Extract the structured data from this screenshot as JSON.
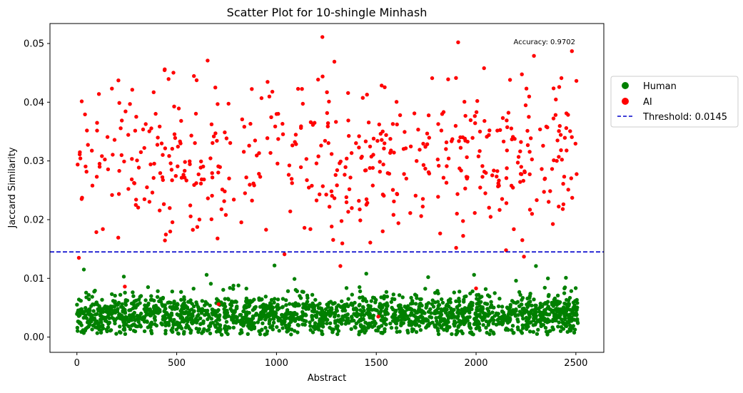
{
  "chart_data": {
    "type": "scatter",
    "title": "Scatter Plot for 10-shingle Minhash",
    "xlabel": "Abstract",
    "ylabel": "Jaccard Similarity",
    "xlim": [
      -135,
      2640
    ],
    "ylim": [
      -0.0026,
      0.0534
    ],
    "x_ticks": [
      0,
      500,
      1000,
      1500,
      2000,
      2500
    ],
    "x_tick_labels": [
      "0",
      "500",
      "1000",
      "1500",
      "2000",
      "2500"
    ],
    "y_ticks": [
      0.0,
      0.01,
      0.02,
      0.03,
      0.04,
      0.05
    ],
    "y_tick_labels": [
      "0.00",
      "0.01",
      "0.02",
      "0.03",
      "0.04",
      "0.05"
    ],
    "grid": false,
    "legend_placement": "outside-right",
    "annotation": "Accuracy: 0.9702",
    "threshold": {
      "value": 0.0145,
      "label": "Threshold: 0.0145",
      "color": "#0000cc",
      "style": "dashed"
    },
    "series": [
      {
        "name": "Human",
        "color": "#008000",
        "count": 2000,
        "distribution": "approximately uniform on x in [0, 2510], y concentrated in [0.0005, 0.009] around 0.004",
        "outliers": [
          [
            35,
            0.0115
          ],
          [
            235,
            0.0103
          ],
          [
            650,
            0.0106
          ],
          [
            990,
            0.0122
          ],
          [
            1090,
            0.0099
          ],
          [
            1760,
            0.0102
          ],
          [
            1990,
            0.0106
          ],
          [
            2300,
            0.0121
          ],
          [
            2360,
            0.01
          ],
          [
            2450,
            0.0101
          ],
          [
            2200,
            0.0096
          ],
          [
            1450,
            0.0108
          ]
        ]
      },
      {
        "name": "AI",
        "color": "#ff0000",
        "count": 500,
        "distribution": "approximately uniform on x in [0, 2510], y mostly in [0.020, 0.045] with a few points near 0.011-0.018",
        "notable_points": [
          [
            1230,
            0.0511
          ],
          [
            1910,
            0.0502
          ],
          [
            2480,
            0.0487
          ],
          [
            2290,
            0.0479
          ],
          [
            655,
            0.0471
          ],
          [
            1290,
            0.0469
          ],
          [
            2040,
            0.0458
          ],
          [
            440,
            0.0456
          ],
          [
            1780,
            0.0441
          ],
          [
            1860,
            0.0439
          ],
          [
            2170,
            0.0438
          ],
          [
            10,
            0.0135
          ],
          [
            1040,
            0.0141
          ],
          [
            2150,
            0.0148
          ],
          [
            1470,
            0.0161
          ],
          [
            1900,
            0.0152
          ],
          [
            240,
            0.0086
          ],
          [
            710,
            0.0056
          ],
          [
            1510,
            0.0035
          ],
          [
            1320,
            0.0121
          ],
          [
            2000,
            0.0083
          ],
          [
            2240,
            0.0137
          ]
        ]
      }
    ]
  }
}
